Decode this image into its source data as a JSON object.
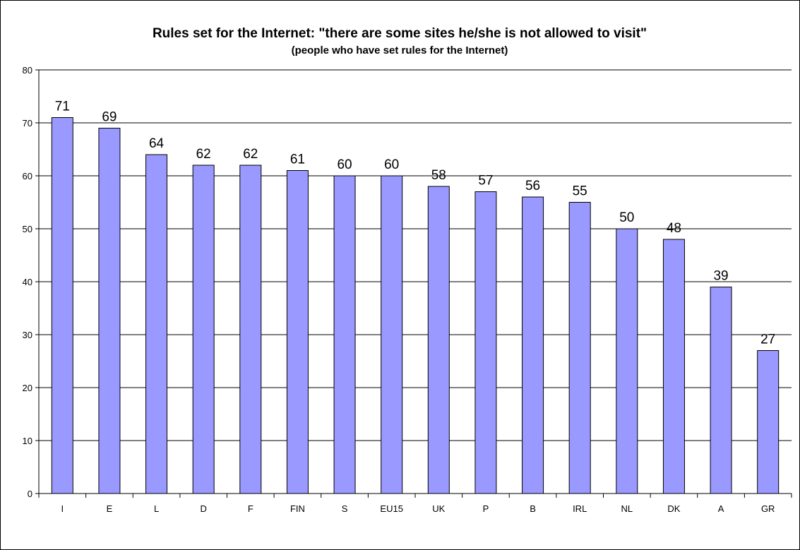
{
  "chart_data": {
    "type": "bar",
    "title": "Rules set for the Internet: \"there are some sites he/she is not allowed to visit\"",
    "subtitle": "(people who have set rules for the Internet)",
    "xlabel": "",
    "ylabel": "",
    "categories": [
      "I",
      "E",
      "L",
      "D",
      "F",
      "FIN",
      "S",
      "EU15",
      "UK",
      "P",
      "B",
      "IRL",
      "NL",
      "DK",
      "A",
      "GR"
    ],
    "values": [
      71,
      69,
      64,
      62,
      62,
      61,
      60,
      60,
      58,
      57,
      56,
      55,
      50,
      48,
      39,
      27
    ],
    "ylim": [
      0,
      80
    ],
    "yticks": [
      0,
      10,
      20,
      30,
      40,
      50,
      60,
      70,
      80
    ],
    "grid": true,
    "legend": "none",
    "bar_color": "#9999ff"
  }
}
